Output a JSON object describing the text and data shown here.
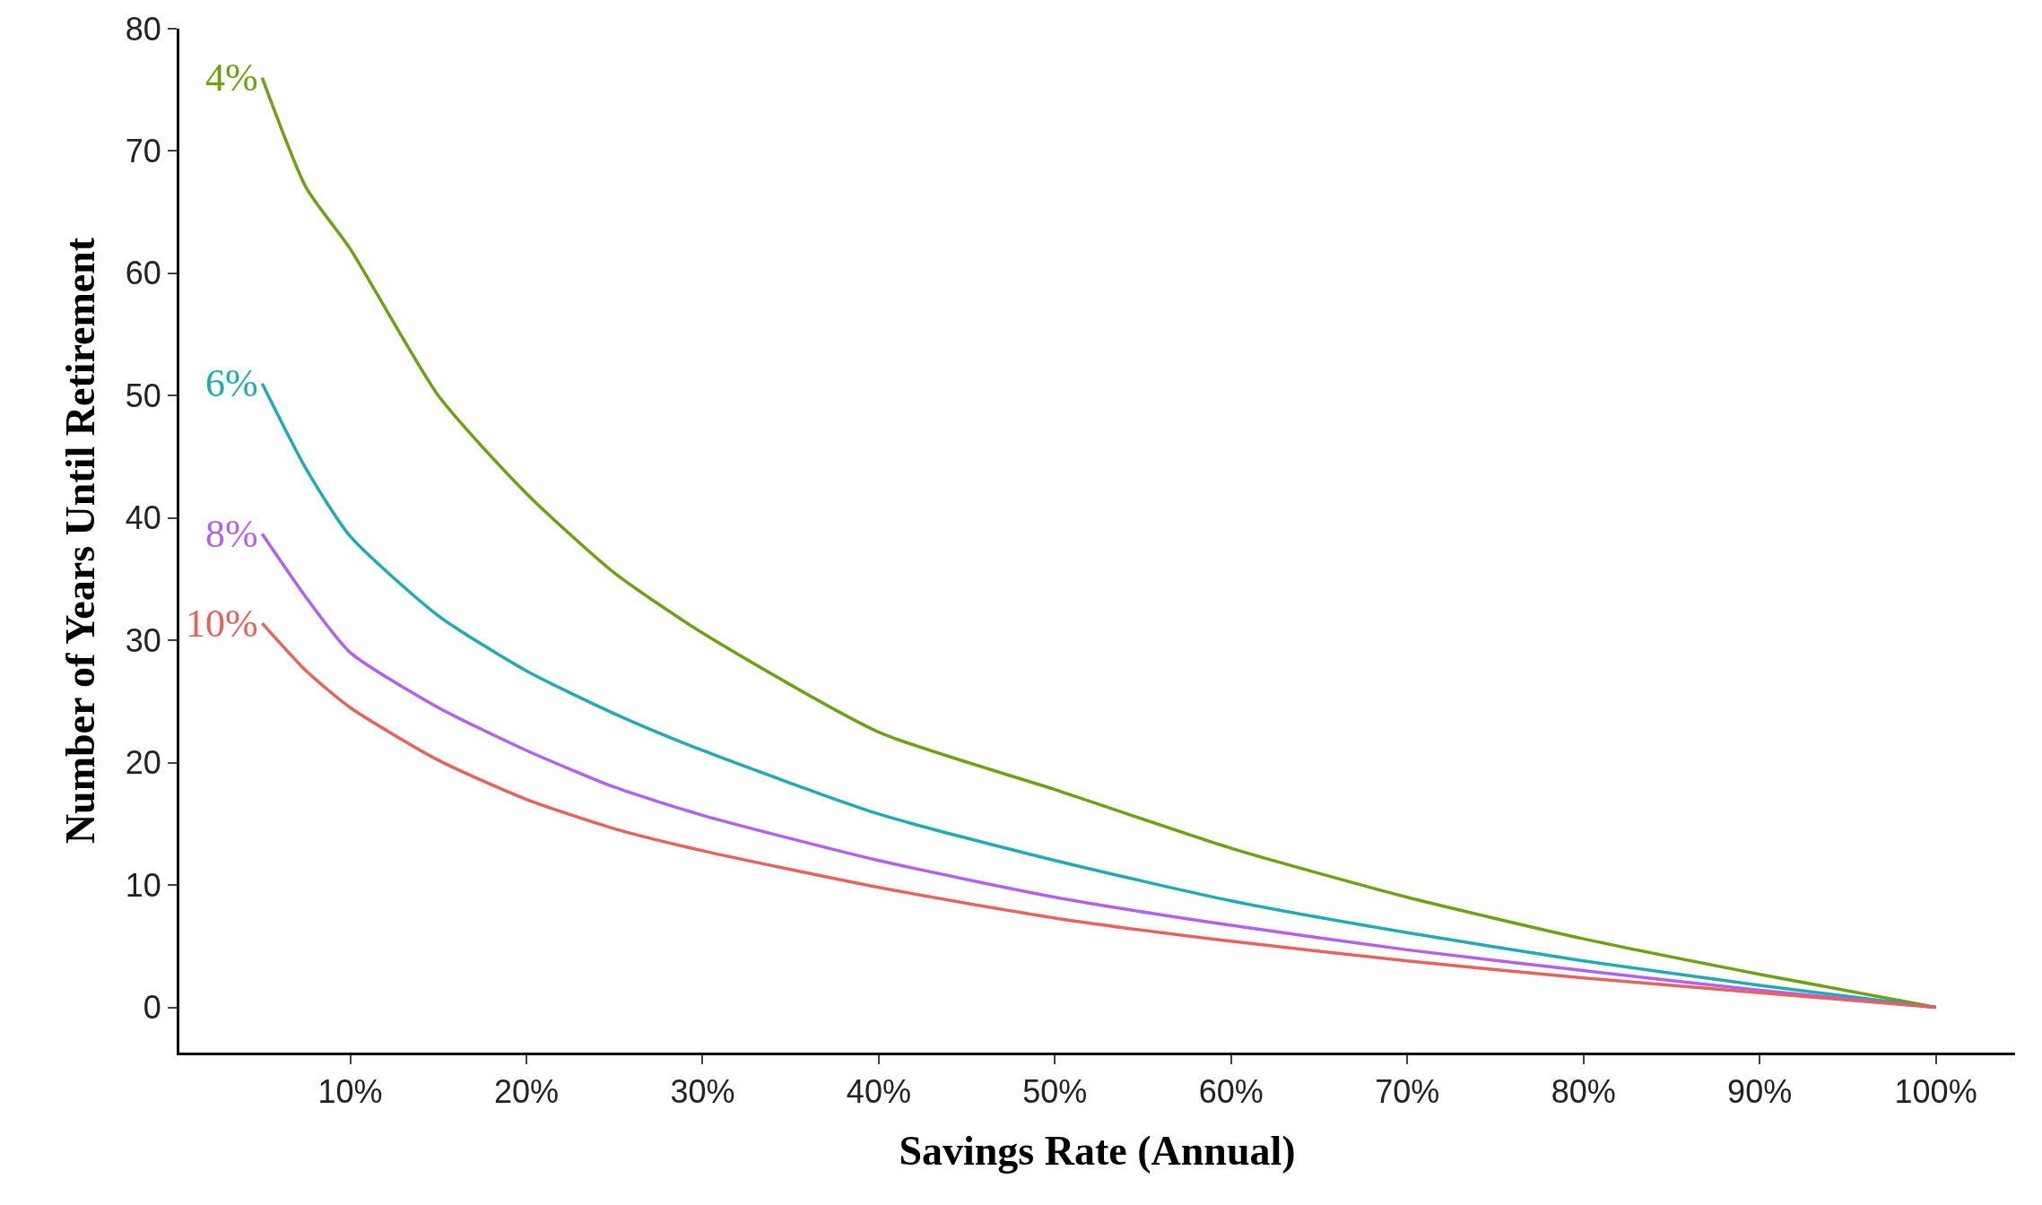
{
  "chart_data": {
    "type": "line",
    "xlabel": "Savings Rate (Annual)",
    "ylabel": "Number of Years Until Retirement",
    "x": [
      5,
      7.5,
      10,
      15,
      20,
      25,
      30,
      40,
      50,
      60,
      70,
      80,
      90,
      100
    ],
    "series": [
      {
        "name": "4%",
        "color": "#6fa00f",
        "values": [
          76,
          67,
          62,
          50,
          42,
          35.5,
          30.6,
          22.5,
          17.8,
          13,
          9,
          5.6,
          2.7,
          0
        ]
      },
      {
        "name": "6%",
        "color": "#1fabb4",
        "values": [
          51,
          44,
          38.5,
          32,
          27.5,
          24,
          21,
          15.8,
          12,
          8.7,
          6.1,
          3.8,
          1.8,
          0
        ]
      },
      {
        "name": "8%",
        "color": "#b35ff0",
        "values": [
          38.7,
          33.5,
          29,
          24.5,
          21,
          18,
          15.7,
          12,
          9,
          6.7,
          4.7,
          3,
          1.4,
          0
        ]
      },
      {
        "name": "10%",
        "color": "#e8615c",
        "values": [
          31.4,
          27.5,
          24.5,
          20.2,
          17,
          14.6,
          12.8,
          9.8,
          7.3,
          5.4,
          3.8,
          2.4,
          1.2,
          0
        ]
      }
    ],
    "xlim": [
      0.3,
      104.5
    ],
    "ylim": [
      -3.7,
      80
    ],
    "xticks": [
      {
        "value": 10,
        "label": "10%"
      },
      {
        "value": 20,
        "label": "20%"
      },
      {
        "value": 30,
        "label": "30%"
      },
      {
        "value": 40,
        "label": "40%"
      },
      {
        "value": 50,
        "label": "50%"
      },
      {
        "value": 60,
        "label": "60%"
      },
      {
        "value": 70,
        "label": "70%"
      },
      {
        "value": 80,
        "label": "80%"
      },
      {
        "value": 90,
        "label": "90%"
      },
      {
        "value": 100,
        "label": "100%"
      }
    ],
    "yticks": [
      0,
      10,
      20,
      30,
      40,
      50,
      60,
      70,
      80
    ],
    "legend": false,
    "marker": "none",
    "line_style": "solid"
  }
}
